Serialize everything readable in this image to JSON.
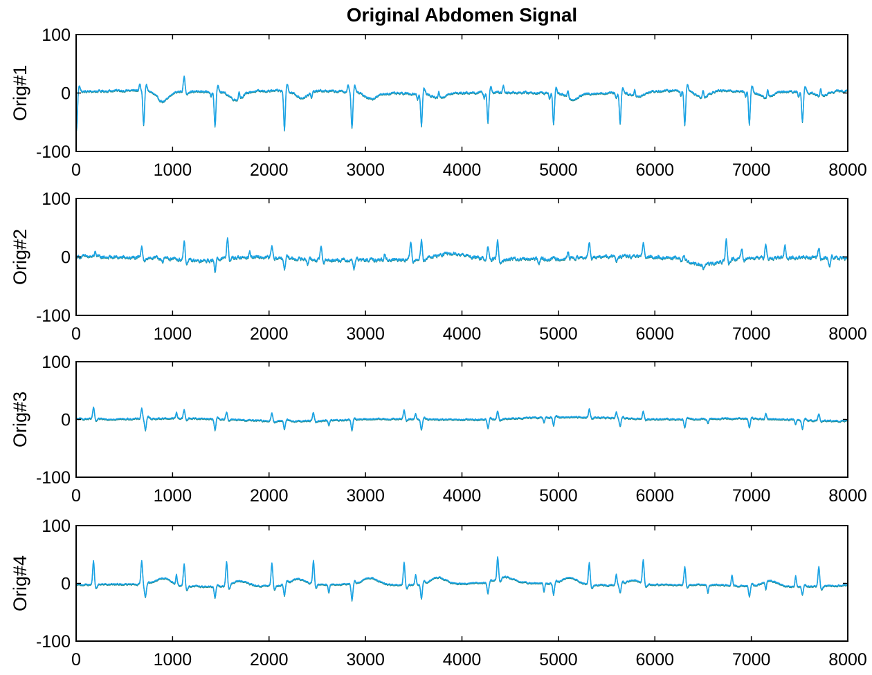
{
  "chart_data": {
    "type": "line",
    "title": "Original Abdomen Signal",
    "layout": "4 stacked subplots",
    "grid": false,
    "legend": "none",
    "line_color": "#1aa3e6",
    "line_color_secondary": "#1f8a86",
    "axis_color": "#000000",
    "xlim": [
      0,
      8000
    ],
    "ylim": [
      -100,
      100
    ],
    "xticks": [
      0,
      1000,
      2000,
      3000,
      4000,
      5000,
      6000,
      7000,
      8000
    ],
    "yticks": [
      100,
      0,
      -100
    ],
    "subplots": [
      {
        "ylabel": "Orig#1",
        "baseline": 2,
        "noise": 3,
        "spikes": [
          {
            "x": 5,
            "v": -65
          },
          {
            "x": 700,
            "v": -60
          },
          {
            "x": 1120,
            "v": 25
          },
          {
            "x": 1440,
            "v": -58
          },
          {
            "x": 2160,
            "v": -68
          },
          {
            "x": 2860,
            "v": -62
          },
          {
            "x": 3580,
            "v": -55
          },
          {
            "x": 4270,
            "v": -52
          },
          {
            "x": 4950,
            "v": -52
          },
          {
            "x": 5640,
            "v": -52
          },
          {
            "x": 6310,
            "v": -58
          },
          {
            "x": 6980,
            "v": -55
          },
          {
            "x": 7530,
            "v": -52
          }
        ],
        "small_spikes": [
          660,
          1400,
          1690,
          2440,
          2820,
          3540,
          3760,
          4230,
          4430,
          4910,
          5100,
          5600,
          5790,
          6270,
          6500,
          6940,
          7170,
          7490,
          7720
        ],
        "small_spike_amp": 12,
        "waves": [
          {
            "x": 900,
            "v": -18
          },
          {
            "x": 1660,
            "v": -14
          },
          {
            "x": 2340,
            "v": -12
          },
          {
            "x": 3060,
            "v": -10
          },
          {
            "x": 3760,
            "v": -8
          },
          {
            "x": 5150,
            "v": -10
          },
          {
            "x": 5820,
            "v": -8
          },
          {
            "x": 6490,
            "v": -12
          },
          {
            "x": 7150,
            "v": -10
          },
          {
            "x": 7720,
            "v": -8
          }
        ],
        "wave_width": 90
      },
      {
        "ylabel": "Orig#2",
        "baseline": -2,
        "noise": 5,
        "spikes": [
          {
            "x": 680,
            "v": 18
          },
          {
            "x": 1120,
            "v": 32
          },
          {
            "x": 1440,
            "v": -20
          },
          {
            "x": 1570,
            "v": 35
          },
          {
            "x": 2030,
            "v": 20
          },
          {
            "x": 2160,
            "v": -18
          },
          {
            "x": 2540,
            "v": 20
          },
          {
            "x": 2880,
            "v": -15
          },
          {
            "x": 3470,
            "v": 28
          },
          {
            "x": 3580,
            "v": 30
          },
          {
            "x": 4270,
            "v": 20
          },
          {
            "x": 4370,
            "v": 32
          },
          {
            "x": 5320,
            "v": 28
          },
          {
            "x": 5880,
            "v": 22
          },
          {
            "x": 6740,
            "v": 35
          },
          {
            "x": 6900,
            "v": 18
          },
          {
            "x": 7150,
            "v": 24
          },
          {
            "x": 7350,
            "v": 22
          },
          {
            "x": 7700,
            "v": 16
          },
          {
            "x": 7810,
            "v": -15
          }
        ],
        "small_spikes": [
          200,
          900,
          1800,
          2400,
          3200,
          4800,
          5100,
          5600,
          6300,
          6500
        ],
        "small_spike_amp": 10,
        "waves": [
          {
            "x": 3900,
            "v": 8
          },
          {
            "x": 6500,
            "v": -12
          },
          {
            "x": 1300,
            "v": -6
          }
        ],
        "wave_width": 220
      },
      {
        "ylabel": "Orig#3",
        "baseline": 1,
        "noise": 2,
        "spikes": [
          {
            "x": 180,
            "v": 20
          },
          {
            "x": 680,
            "v": 18
          },
          {
            "x": 720,
            "v": -18
          },
          {
            "x": 1120,
            "v": 15
          },
          {
            "x": 1440,
            "v": -20
          },
          {
            "x": 1560,
            "v": 12
          },
          {
            "x": 2030,
            "v": 14
          },
          {
            "x": 2160,
            "v": -15
          },
          {
            "x": 2460,
            "v": 14
          },
          {
            "x": 2860,
            "v": -18
          },
          {
            "x": 3400,
            "v": 16
          },
          {
            "x": 3580,
            "v": -18
          },
          {
            "x": 4270,
            "v": -15
          },
          {
            "x": 4370,
            "v": 14
          },
          {
            "x": 4950,
            "v": -15
          },
          {
            "x": 5320,
            "v": 14
          },
          {
            "x": 5640,
            "v": -15
          },
          {
            "x": 5880,
            "v": 14
          },
          {
            "x": 6310,
            "v": -15
          },
          {
            "x": 6980,
            "v": -15
          },
          {
            "x": 7530,
            "v": -15
          },
          {
            "x": 7700,
            "v": 12
          }
        ],
        "small_spikes": [
          1040,
          2620,
          3520,
          4850,
          5600,
          6550,
          7150,
          7460
        ],
        "small_spike_amp": 10,
        "waves": [],
        "wave_width": 100
      },
      {
        "ylabel": "Orig#4",
        "baseline": -2,
        "noise": 2,
        "spikes": [
          {
            "x": 180,
            "v": 40
          },
          {
            "x": 680,
            "v": 40
          },
          {
            "x": 720,
            "v": -18
          },
          {
            "x": 1120,
            "v": 38
          },
          {
            "x": 1440,
            "v": -20
          },
          {
            "x": 1560,
            "v": 42
          },
          {
            "x": 2030,
            "v": 38
          },
          {
            "x": 2160,
            "v": -20
          },
          {
            "x": 2460,
            "v": 40
          },
          {
            "x": 2860,
            "v": -28
          },
          {
            "x": 3400,
            "v": 38
          },
          {
            "x": 3580,
            "v": -25
          },
          {
            "x": 4270,
            "v": -20
          },
          {
            "x": 4370,
            "v": 38
          },
          {
            "x": 4950,
            "v": -20
          },
          {
            "x": 5320,
            "v": 38
          },
          {
            "x": 5640,
            "v": -15
          },
          {
            "x": 5880,
            "v": 40
          },
          {
            "x": 6310,
            "v": 30
          },
          {
            "x": 6980,
            "v": -18
          },
          {
            "x": 7530,
            "v": -15
          },
          {
            "x": 7700,
            "v": 35
          }
        ],
        "small_spikes": [
          1040,
          2620,
          3520,
          4850,
          5600,
          6550,
          6800,
          7150,
          7460
        ],
        "small_spike_amp": 18,
        "waves": [
          {
            "x": 900,
            "v": 12
          },
          {
            "x": 1700,
            "v": 10
          },
          {
            "x": 2300,
            "v": 10
          },
          {
            "x": 3050,
            "v": 12
          },
          {
            "x": 3750,
            "v": 12
          },
          {
            "x": 4450,
            "v": 10
          },
          {
            "x": 5120,
            "v": 12
          },
          {
            "x": 5780,
            "v": 8
          },
          {
            "x": 7200,
            "v": 10
          }
        ],
        "wave_width": 110
      }
    ]
  }
}
